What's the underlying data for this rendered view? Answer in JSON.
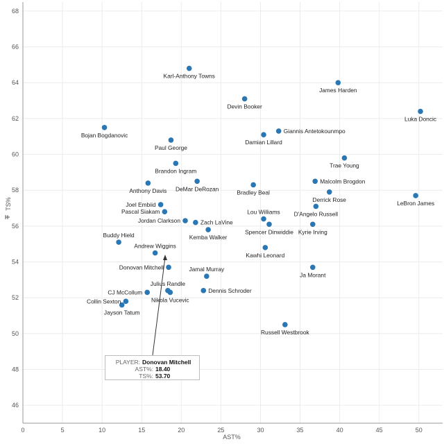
{
  "chart_data": {
    "type": "scatter",
    "xlabel": "AST%",
    "ylabel": "TS%",
    "xlim": [
      0,
      53
    ],
    "ylim": [
      45,
      68.5
    ],
    "xticks": [
      "0",
      "5",
      "10",
      "15",
      "20",
      "25",
      "30",
      "35",
      "40",
      "45",
      "50"
    ],
    "yticks": [
      "46",
      "48",
      "50",
      "52",
      "54",
      "56",
      "58",
      "60",
      "62",
      "64",
      "66",
      "68"
    ],
    "grid": true,
    "marker_color": "#2a77b4",
    "points": [
      {
        "name": "Karl-Anthony Towns",
        "x": 21.0,
        "y": 64.8,
        "label_pos": "below"
      },
      {
        "name": "James Harden",
        "x": 39.8,
        "y": 64.0,
        "label_pos": "below"
      },
      {
        "name": "Devin Booker",
        "x": 28.0,
        "y": 63.1,
        "label_pos": "below"
      },
      {
        "name": "Luka Doncic",
        "x": 50.2,
        "y": 62.4,
        "label_pos": "below"
      },
      {
        "name": "Bojan Bogdanovic",
        "x": 10.3,
        "y": 61.5,
        "label_pos": "below"
      },
      {
        "name": "Giannis Antetokounmpo",
        "x": 32.3,
        "y": 61.3,
        "label_pos": "right"
      },
      {
        "name": "Damian Lillard",
        "x": 30.4,
        "y": 61.1,
        "label_pos": "below"
      },
      {
        "name": "Paul George",
        "x": 18.7,
        "y": 60.8,
        "label_pos": "below"
      },
      {
        "name": "Trae Young",
        "x": 40.6,
        "y": 59.8,
        "label_pos": "below"
      },
      {
        "name": "Brandon Ingram",
        "x": 19.3,
        "y": 59.5,
        "label_pos": "below"
      },
      {
        "name": "Malcolm Brogdon",
        "x": 36.9,
        "y": 58.5,
        "label_pos": "right"
      },
      {
        "name": "DeMar DeRozan",
        "x": 22.0,
        "y": 58.5,
        "label_pos": "below"
      },
      {
        "name": "Anthony Davis",
        "x": 15.8,
        "y": 58.4,
        "label_pos": "below"
      },
      {
        "name": "Bradley Beal",
        "x": 29.1,
        "y": 58.3,
        "label_pos": "below"
      },
      {
        "name": "Derrick Rose",
        "x": 38.7,
        "y": 57.9,
        "label_pos": "below"
      },
      {
        "name": "LeBron James",
        "x": 49.6,
        "y": 57.7,
        "label_pos": "below"
      },
      {
        "name": "Joel Embiid",
        "x": 17.4,
        "y": 57.2,
        "label_pos": "left"
      },
      {
        "name": "D'Angelo Russell",
        "x": 37.0,
        "y": 57.1,
        "label_pos": "below"
      },
      {
        "name": "Pascal Siakam",
        "x": 17.9,
        "y": 56.8,
        "label_pos": "left"
      },
      {
        "name": "Lou Williams",
        "x": 30.4,
        "y": 56.4,
        "label_pos": "above"
      },
      {
        "name": "Jordan Clarkson",
        "x": 20.5,
        "y": 56.3,
        "label_pos": "left"
      },
      {
        "name": "Zach LaVine",
        "x": 21.8,
        "y": 56.2,
        "label_pos": "right"
      },
      {
        "name": "Spencer Dinwiddie",
        "x": 31.1,
        "y": 56.1,
        "label_pos": "below"
      },
      {
        "name": "Kyrie Irving",
        "x": 36.6,
        "y": 56.1,
        "label_pos": "below"
      },
      {
        "name": "Kemba Walker",
        "x": 23.4,
        "y": 55.8,
        "label_pos": "below"
      },
      {
        "name": "Buddy Hield",
        "x": 12.1,
        "y": 55.1,
        "label_pos": "above"
      },
      {
        "name": "Kawhi Leonard",
        "x": 30.6,
        "y": 54.8,
        "label_pos": "below"
      },
      {
        "name": "Andrew Wiggins",
        "x": 16.7,
        "y": 54.5,
        "label_pos": "above"
      },
      {
        "name": "Donovan Mitchell",
        "x": 18.4,
        "y": 53.7,
        "label_pos": "left"
      },
      {
        "name": "Ja Morant",
        "x": 36.6,
        "y": 53.7,
        "label_pos": "below"
      },
      {
        "name": "Jamal Murray",
        "x": 23.2,
        "y": 53.2,
        "label_pos": "above"
      },
      {
        "name": "Julius Randle",
        "x": 18.3,
        "y": 52.4,
        "label_pos": "above"
      },
      {
        "name": "Dennis Schroder",
        "x": 22.8,
        "y": 52.4,
        "label_pos": "right"
      },
      {
        "name": "CJ McCollum",
        "x": 15.7,
        "y": 52.3,
        "label_pos": "left"
      },
      {
        "name": "Nikola Vucevic",
        "x": 18.6,
        "y": 52.3,
        "label_pos": "below"
      },
      {
        "name": "Collin Sexton",
        "x": 13.0,
        "y": 51.8,
        "label_pos": "left"
      },
      {
        "name": "Jayson Tatum",
        "x": 12.5,
        "y": 51.6,
        "label_pos": "below"
      },
      {
        "name": "Russell Westbrook",
        "x": 33.1,
        "y": 50.5,
        "label_pos": "below"
      }
    ],
    "tooltip": {
      "player_key": "PLAYER:",
      "player_value": "Donovan Mitchell",
      "ast_key": "AST%:",
      "ast_value": "18.40",
      "ts_key": "TS%:",
      "ts_value": "53.70"
    }
  }
}
